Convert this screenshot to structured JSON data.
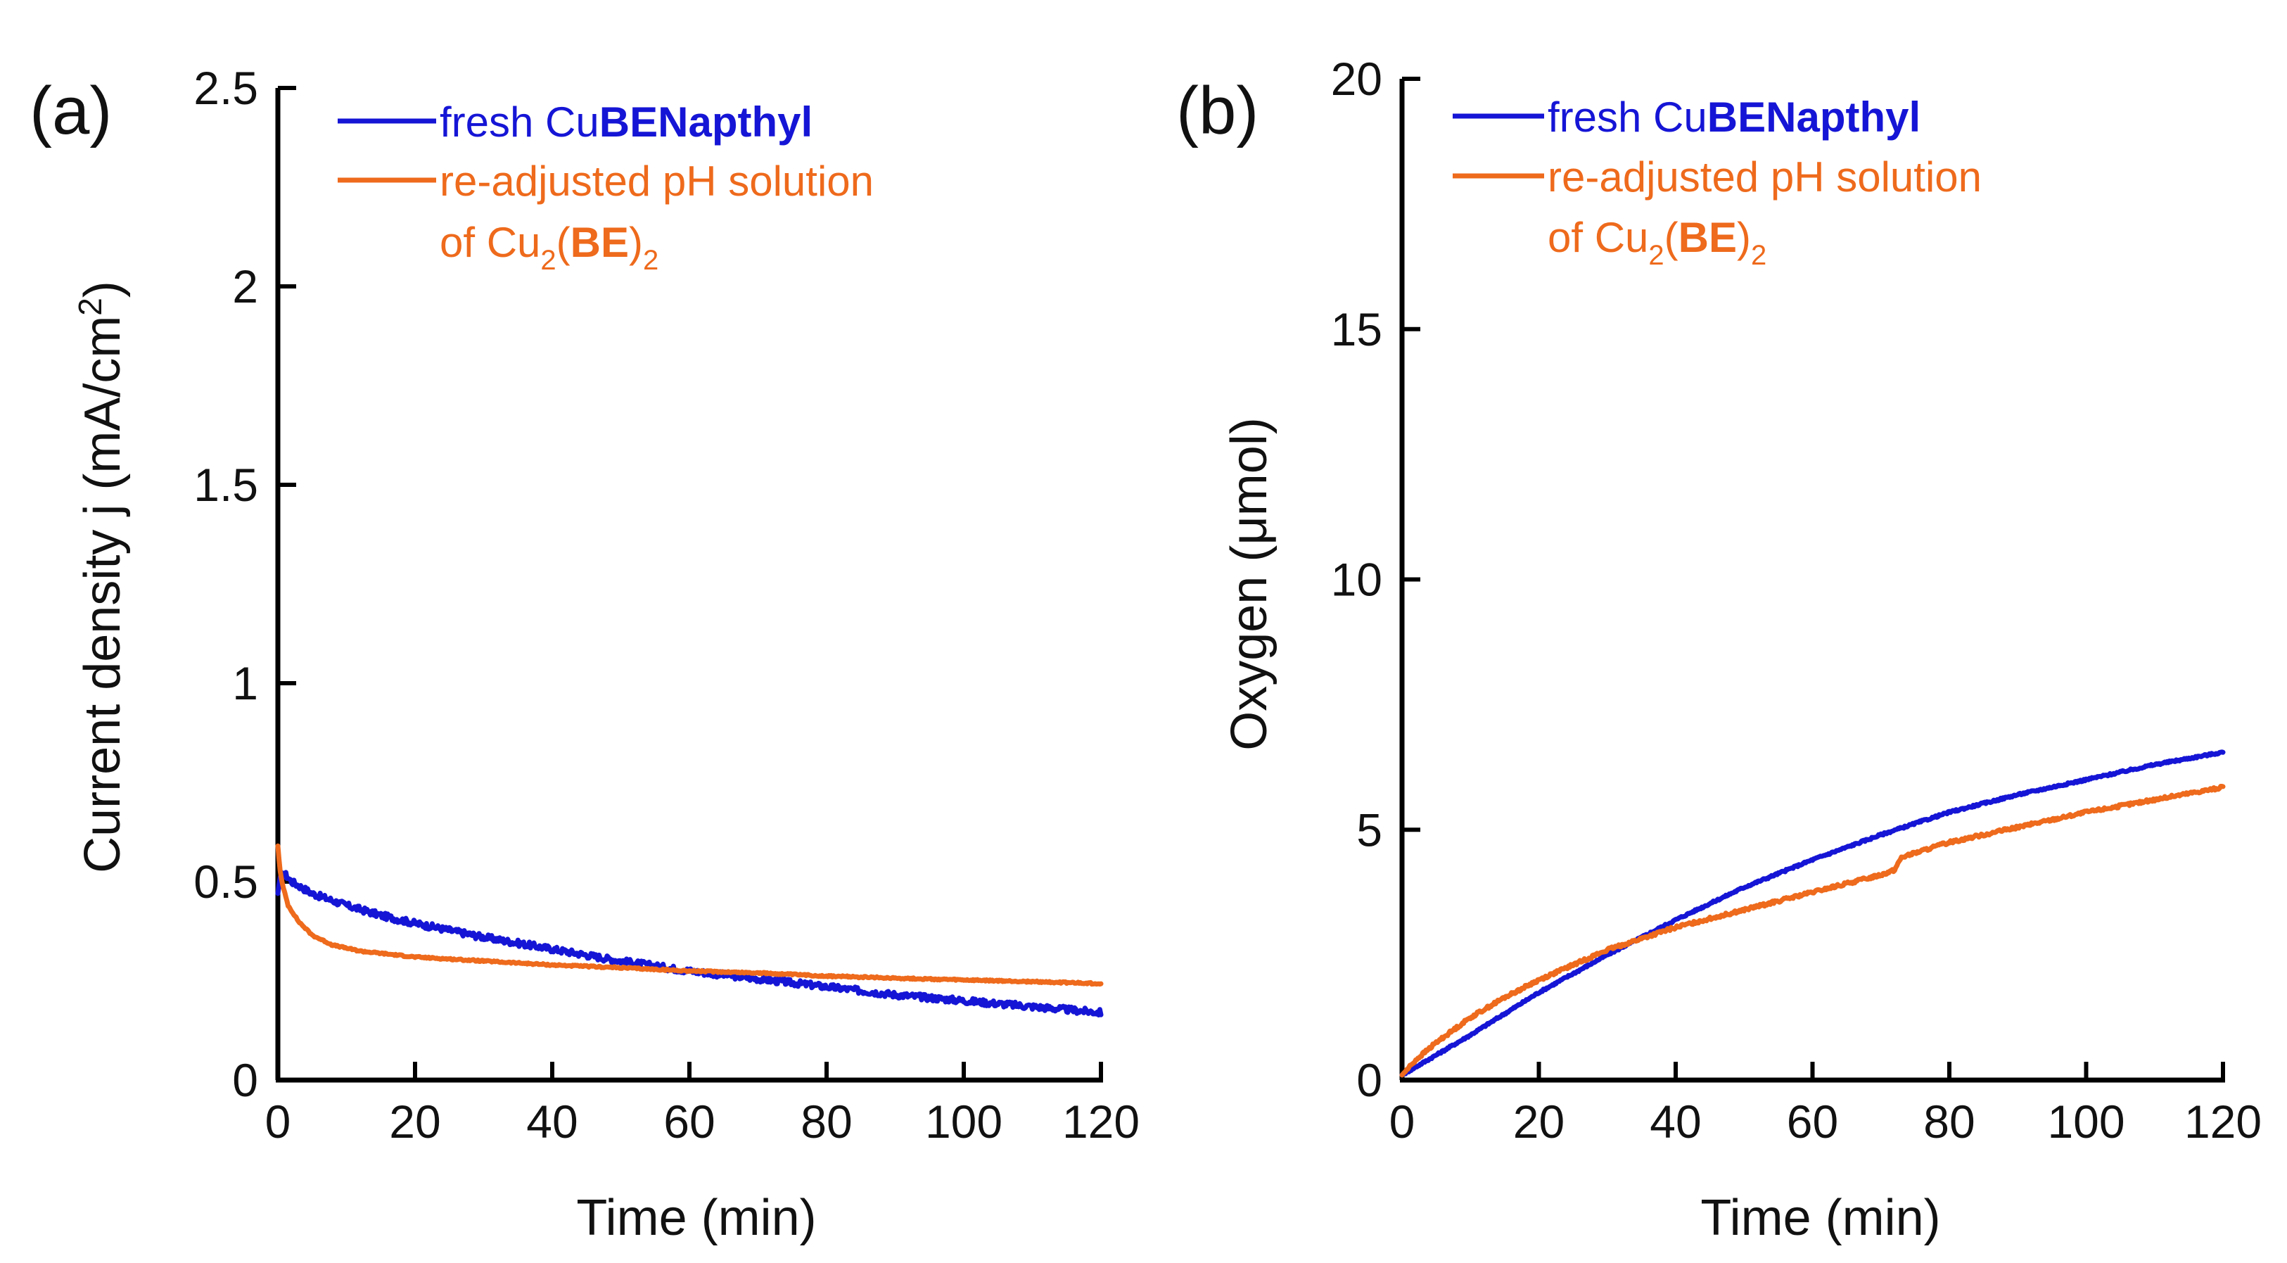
{
  "colors": {
    "blue": "#1515d6",
    "orange": "#ee6a1c",
    "axis": "#000000"
  },
  "chart_data": [
    {
      "type": "line",
      "panel_label": "(a)",
      "xlabel": "Time (min)",
      "ylabel_main": "Current density j (mA/cm",
      "ylabel_sup": "2",
      "ylabel_end": ")",
      "xlim": [
        0,
        120
      ],
      "ylim": [
        0,
        2.5
      ],
      "x_ticks": [
        0,
        20,
        40,
        60,
        80,
        100,
        120
      ],
      "x_tick_labels": [
        "0",
        "20",
        "40",
        "60",
        "80",
        "100",
        "120"
      ],
      "y_ticks": [
        0,
        0.5,
        1,
        1.5,
        2,
        2.5
      ],
      "y_tick_labels": [
        "0",
        "0.5",
        "1",
        "1.5",
        "2",
        "2.5"
      ],
      "legend_position": "top-right",
      "series": [
        {
          "name": "fresh CuBENapthyl",
          "legend_prefix": "fresh Cu",
          "legend_bold": "BENapthyl",
          "color": "#1515d6",
          "noise": 0.008,
          "x": [
            0,
            0.3,
            1,
            2,
            5,
            10,
            15,
            20,
            30,
            40,
            50,
            60,
            70,
            80,
            90,
            100,
            110,
            120
          ],
          "y": [
            0.47,
            0.51,
            0.52,
            0.5,
            0.47,
            0.44,
            0.415,
            0.395,
            0.36,
            0.33,
            0.3,
            0.275,
            0.255,
            0.235,
            0.215,
            0.2,
            0.185,
            0.17
          ]
        },
        {
          "name": "re-adjusted pH solution of Cu2(BE)2",
          "legend_line1": "re-adjusted pH solution",
          "legend_line2_pre": "of Cu",
          "legend_sub1": "2",
          "legend_paren_open": "(",
          "legend_bold": "BE",
          "legend_paren_close": ")",
          "legend_sub2": "2",
          "color": "#ee6a1c",
          "noise": 0.002,
          "x": [
            0,
            0.3,
            0.7,
            1.5,
            3,
            5,
            8,
            12,
            20,
            30,
            40,
            50,
            60,
            70,
            80,
            90,
            100,
            110,
            120
          ],
          "y": [
            0.59,
            0.53,
            0.49,
            0.44,
            0.4,
            0.365,
            0.34,
            0.325,
            0.31,
            0.3,
            0.29,
            0.283,
            0.275,
            0.27,
            0.262,
            0.257,
            0.252,
            0.248,
            0.243
          ]
        }
      ]
    },
    {
      "type": "line",
      "panel_label": "(b)",
      "xlabel": "Time (min)",
      "ylabel": "Oxygen (μmol)",
      "xlim": [
        0,
        120
      ],
      "ylim": [
        0,
        20
      ],
      "x_ticks": [
        0,
        20,
        40,
        60,
        80,
        100,
        120
      ],
      "x_tick_labels": [
        "0",
        "20",
        "40",
        "60",
        "80",
        "100",
        "120"
      ],
      "y_ticks": [
        0,
        5,
        10,
        15,
        20
      ],
      "y_tick_labels": [
        "0",
        "5",
        "10",
        "15",
        "20"
      ],
      "legend_position": "top-right",
      "series": [
        {
          "name": "fresh CuBENapthyl",
          "legend_prefix": "fresh Cu",
          "legend_bold": "BENapthyl",
          "color": "#1515d6",
          "noise": 0.02,
          "x": [
            0,
            5,
            10,
            20,
            30,
            40,
            50,
            60,
            70,
            80,
            90,
            100,
            110,
            120
          ],
          "y": [
            0.1,
            0.5,
            0.9,
            1.75,
            2.5,
            3.2,
            3.85,
            4.4,
            4.9,
            5.35,
            5.7,
            6.0,
            6.3,
            6.55
          ]
        },
        {
          "name": "re-adjusted pH solution of Cu2(BE)2",
          "legend_line1": "re-adjusted pH solution",
          "legend_line2_pre": "of Cu",
          "legend_sub1": "2",
          "legend_paren_open": "(",
          "legend_bold": "BE",
          "legend_paren_close": ")",
          "legend_sub2": "2",
          "color": "#ee6a1c",
          "noise": 0.03,
          "x": [
            0,
            2,
            5,
            10,
            15,
            20,
            25,
            30,
            40,
            50,
            60,
            70,
            72,
            73,
            80,
            90,
            100,
            110,
            120
          ],
          "y": [
            0.1,
            0.4,
            0.75,
            1.25,
            1.65,
            2.0,
            2.3,
            2.6,
            3.05,
            3.4,
            3.75,
            4.1,
            4.2,
            4.45,
            4.75,
            5.05,
            5.35,
            5.6,
            5.85
          ]
        }
      ]
    }
  ]
}
